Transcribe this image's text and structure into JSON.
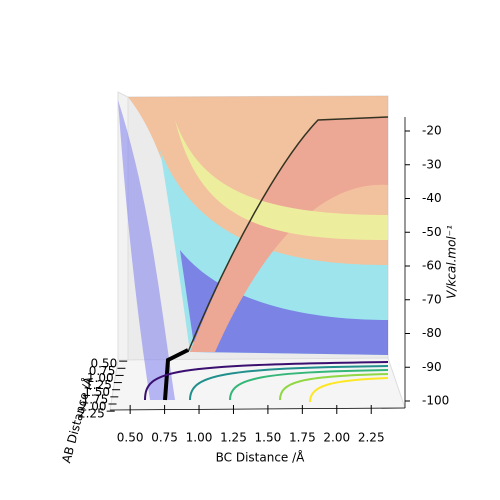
{
  "chart_data": {
    "type": "surface",
    "xlabel": "BC Distance /Å",
    "ylabel": "AB Distance /Å",
    "zlabel": "V/kcal.mol⁻¹",
    "xlim": [
      0.39,
      2.35
    ],
    "xticks": [
      "0.50",
      "0.75",
      "1.00",
      "1.25",
      "1.50",
      "1.75",
      "2.00",
      "2.25"
    ],
    "ylim": [
      0.39,
      2.35
    ],
    "yticks": [
      "0.50",
      "0.75",
      "1.00",
      "1.25",
      "1.50",
      "1.75",
      "2.00",
      "2.25"
    ],
    "zlim": [
      -102,
      -16
    ],
    "zticks": [
      -20,
      -30,
      -40,
      -50,
      -60,
      -70,
      -80,
      -90,
      -100
    ]
  }
}
